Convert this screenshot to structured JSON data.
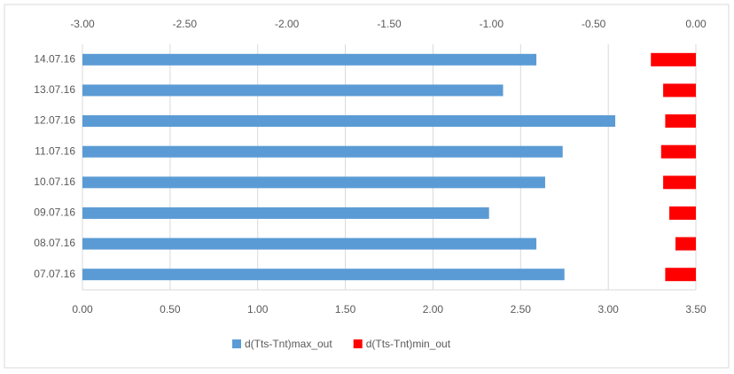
{
  "chart_data": {
    "type": "bar",
    "orientation": "horizontal",
    "categories": [
      "07.07.16",
      "08.07.16",
      "09.07.16",
      "10.07.16",
      "11.07.16",
      "12.07.16",
      "13.07.16",
      "14.07.16"
    ],
    "series": [
      {
        "name": "d(Tts-Tnt)max_out",
        "color": "#5b9bd5",
        "axis": "x",
        "values": [
          2.75,
          2.59,
          2.32,
          2.64,
          2.74,
          3.04,
          2.4,
          2.59
        ]
      },
      {
        "name": "d(Tts-Tnt)min_out",
        "color": "#ff0000",
        "axis": "x2",
        "values": [
          -0.15,
          -0.1,
          -0.13,
          -0.16,
          -0.17,
          -0.15,
          -0.16,
          -0.22
        ]
      }
    ],
    "xlim": [
      0,
      3.5
    ],
    "xticks": [
      {
        "value": 0,
        "label": "0.00"
      },
      {
        "value": 0.5,
        "label": "0.50"
      },
      {
        "value": 1,
        "label": "1.00"
      },
      {
        "value": 1.5,
        "label": "1.50"
      },
      {
        "value": 2,
        "label": "2.00"
      },
      {
        "value": 2.5,
        "label": "2.50"
      },
      {
        "value": 3,
        "label": "3.00"
      },
      {
        "value": 3.5,
        "label": "3.50"
      }
    ],
    "x2lim": [
      -3,
      0
    ],
    "x2ticks": [
      {
        "value": -3,
        "label": "-3.00"
      },
      {
        "value": -2.5,
        "label": "-2.50"
      },
      {
        "value": -2,
        "label": "-2.00"
      },
      {
        "value": -1.5,
        "label": "-1.50"
      },
      {
        "value": -1,
        "label": "-1.00"
      },
      {
        "value": -0.5,
        "label": "-0.50"
      },
      {
        "value": 0,
        "label": "0.00"
      }
    ],
    "grid": true,
    "legend": "bottom"
  }
}
